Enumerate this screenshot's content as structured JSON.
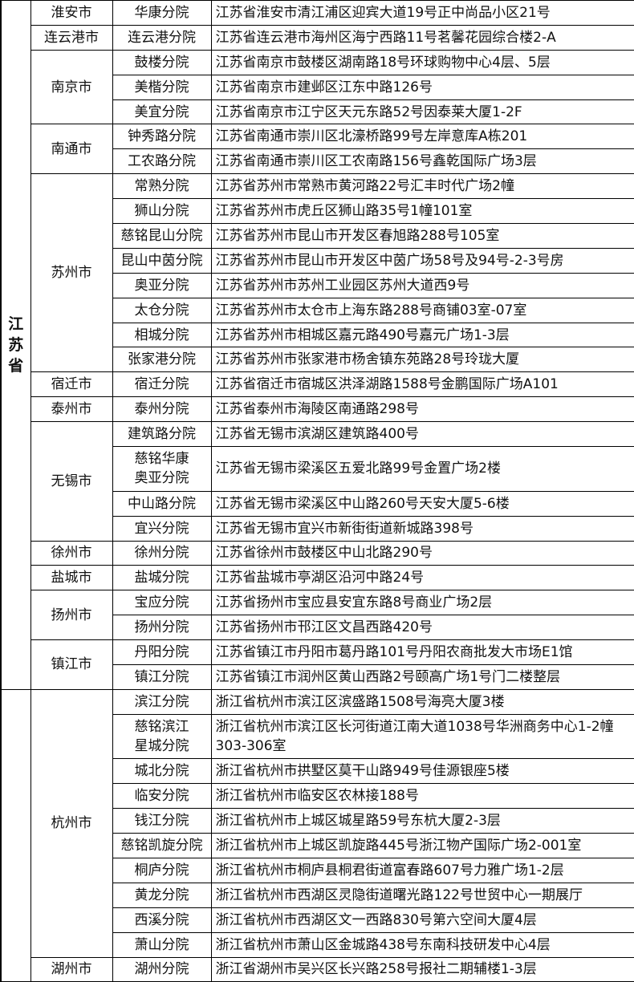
{
  "provinces": [
    {
      "name": "江苏省",
      "cities": [
        {
          "name": "淮安市",
          "branches": [
            {
              "name": "华康分院",
              "address": "江苏省淮安市清江浦区迎宾大道19号正中尚品小区21号"
            }
          ]
        },
        {
          "name": "连云港市",
          "branches": [
            {
              "name": "连云港分院",
              "address": "江苏省连云港市海州区海宁西路11号茗馨花园综合楼2-A"
            }
          ]
        },
        {
          "name": "南京市",
          "branches": [
            {
              "name": "鼓楼分院",
              "address": "江苏省南京市鼓楼区湖南路18号环球购物中心4层、5层"
            },
            {
              "name": "美楷分院",
              "address": "江苏省南京市建邺区江东中路126号"
            },
            {
              "name": "美宜分院",
              "address": "江苏省南京市江宁区天元东路52号因泰莱大厦1-2F"
            }
          ]
        },
        {
          "name": "南通市",
          "branches": [
            {
              "name": "钟秀路分院",
              "address": "江苏省南通市崇川区北濠桥路99号左岸意库A栋201"
            },
            {
              "name": "工农路分院",
              "address": "江苏省南通市崇川区工农南路156号鑫乾国际广场3层"
            }
          ]
        },
        {
          "name": "苏州市",
          "branches": [
            {
              "name": "常熟分院",
              "address": "江苏省苏州市常熟市黄河路22号汇丰时代广场2幢"
            },
            {
              "name": "狮山分院",
              "address": "江苏省苏州市虎丘区狮山路35号1幢101室"
            },
            {
              "name": "慈铭昆山分院",
              "address": "江苏省苏州市昆山市开发区春旭路288号105室"
            },
            {
              "name": "昆山中茵分院",
              "address": "江苏省苏州市昆山市开发区中茵广场58号及94号-2-3号房"
            },
            {
              "name": "奥亚分院",
              "address": "江苏省苏州市苏州工业园区苏州大道西9号"
            },
            {
              "name": "太仓分院",
              "address": "江苏省苏州市太仓市上海东路288号商铺03室-07室"
            },
            {
              "name": "相城分院",
              "address": "江苏省苏州市相城区嘉元路490号嘉元广场1-3层"
            },
            {
              "name": "张家港分院",
              "address": "江苏省苏州市张家港市杨舍镇东苑路28号玲珑大厦"
            }
          ]
        },
        {
          "name": "宿迁市",
          "branches": [
            {
              "name": "宿迁分院",
              "address": "江苏省宿迁市宿城区洪泽湖路1588号金鹏国际广场A101"
            }
          ]
        },
        {
          "name": "泰州市",
          "branches": [
            {
              "name": "泰州分院",
              "address": "江苏省泰州市海陵区南通路298号"
            }
          ]
        },
        {
          "name": "无锡市",
          "branches": [
            {
              "name": "建筑路分院",
              "address": "江苏省无锡市滨湖区建筑路400号"
            },
            {
              "name": "慈铭华康\n奥亚分院",
              "address": "江苏省无锡市梁溪区五爱北路99号金置广场2楼"
            },
            {
              "name": "中山路分院",
              "address": "江苏省无锡市梁溪区中山路260号天安大厦5-6楼"
            },
            {
              "name": "宜兴分院",
              "address": "江苏省无锡市宜兴市新街街道新城路398号"
            }
          ]
        },
        {
          "name": "徐州市",
          "branches": [
            {
              "name": "徐州分院",
              "address": "江苏省徐州市鼓楼区中山北路290号"
            }
          ]
        },
        {
          "name": "盐城市",
          "branches": [
            {
              "name": "盐城分院",
              "address": "江苏省盐城市亭湖区沿河中路24号"
            }
          ]
        },
        {
          "name": "扬州市",
          "branches": [
            {
              "name": "宝应分院",
              "address": "江苏省扬州市宝应县安宜东路8号商业广场2层"
            },
            {
              "name": "扬州分院",
              "address": "江苏省扬州市邗江区文昌西路420号"
            }
          ]
        },
        {
          "name": "镇江市",
          "branches": [
            {
              "name": "丹阳分院",
              "address": "江苏省镇江市丹阳市葛丹路101号丹阳农商批发大市场E1馆"
            },
            {
              "name": "镇江分院",
              "address": "江苏省镇江市润州区黄山西路2号颐高广场1号门二楼整层"
            }
          ]
        }
      ]
    },
    {
      "cities": [
        {
          "name": "杭州市",
          "branches": [
            {
              "name": "滨江分院",
              "address": "浙江省杭州市滨江区滨盛路1508号海亮大厦3楼"
            },
            {
              "name": "慈铭滨江\n星城分院",
              "address": "浙江省杭州市滨江区长河街道江南大道1038号华洲商务中心1-2幢303-306室"
            },
            {
              "name": "城北分院",
              "address": "浙江省杭州市拱墅区莫干山路949号佳源银座5楼"
            },
            {
              "name": "临安分院",
              "address": "浙江省杭州市临安区农林接188号"
            },
            {
              "name": "钱江分院",
              "address": "浙江省杭州市上城区城星路59号东杭大厦2-3层"
            },
            {
              "name": "慈铭凯旋分院",
              "address": "浙江省杭州市上城区凯旋路445号浙江物产国际广场2-001室"
            },
            {
              "name": "桐庐分院",
              "address": "浙江省杭州市桐庐县桐君街道富春路607号力雅广场1-2层"
            },
            {
              "name": "黄龙分院",
              "address": "浙江省杭州市西湖区灵隐街道曙光路122号世贸中心一期展厅"
            },
            {
              "name": "西溪分院",
              "address": "浙江省杭州市西湖区文一西路830号第六空间大厦4层"
            },
            {
              "name": "萧山分院",
              "address": "浙江省杭州市萧山区金城路438号东南科技研发中心4层"
            }
          ]
        },
        {
          "name": "湖州市",
          "branches": [
            {
              "name": "湖州分院",
              "address": "浙江省湖州市吴兴区长兴路258号报社二期辅楼1-3层"
            }
          ]
        }
      ]
    }
  ]
}
